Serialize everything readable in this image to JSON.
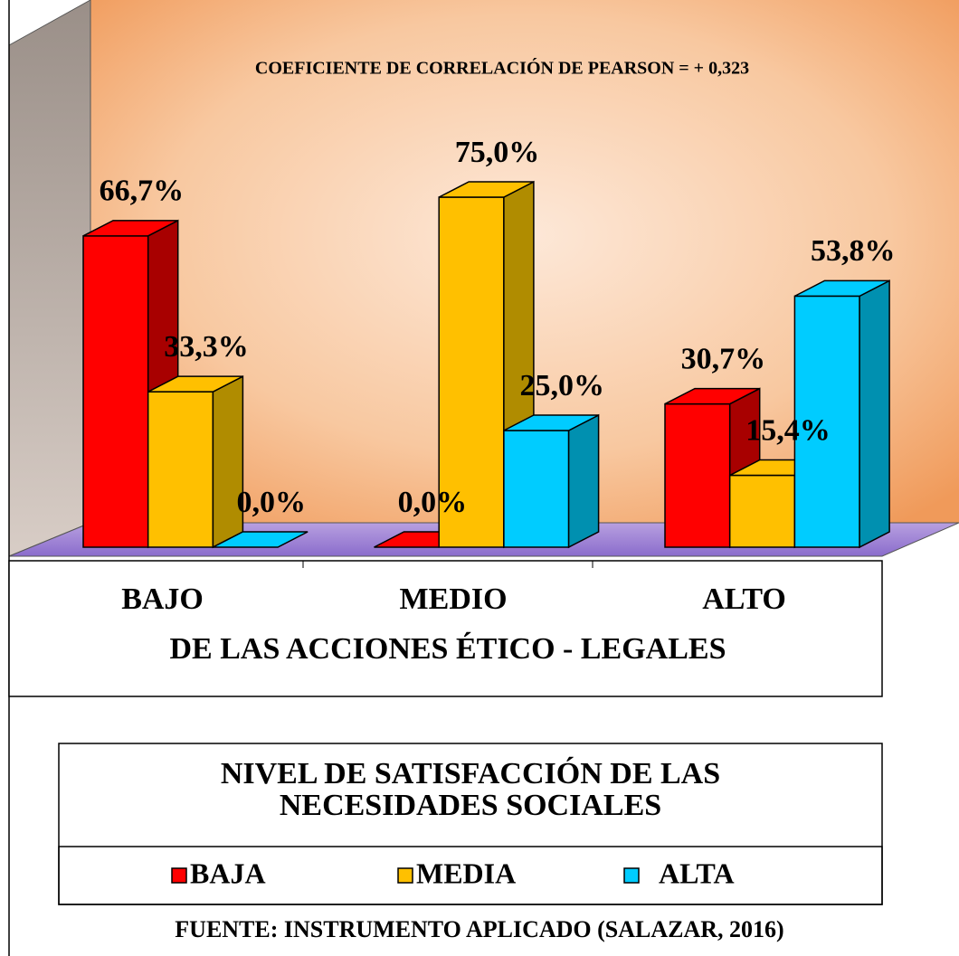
{
  "chart_data": {
    "type": "bar3d",
    "subtitle": "COEFICIENTE DE CORRELACIÓN DE PEARSON = + 0,323",
    "categories": [
      "BAJO",
      "MEDIO",
      "ALTO"
    ],
    "x_label": "DE LAS ACCIONES ÉTICO - LEGALES",
    "legend_title": [
      "NIVEL DE SATISFACCIÓN DE LAS",
      "NECESIDADES SOCIALES"
    ],
    "series": [
      {
        "name": "BAJA",
        "color": "#ff0000",
        "side_color": "#a80000",
        "values": [
          66.7,
          0,
          30.7
        ],
        "value_labels": [
          "66,7%",
          "0,0%",
          "30,7%"
        ]
      },
      {
        "name": "MEDIA",
        "color": "#ffc000",
        "side_color": "#b08c00",
        "values": [
          33.3,
          75,
          15.4
        ],
        "value_labels": [
          "33,3%",
          "75,0%",
          "15,4%"
        ]
      },
      {
        "name": "ALTA",
        "color": "#00ccff",
        "side_color": "#0090b0",
        "values": [
          0,
          25,
          53.8
        ],
        "value_labels": [
          "0,0%",
          "25,0%",
          "53,8%"
        ]
      }
    ],
    "source": "FUENTE: INSTRUMENTO APLICADO (SALAZAR, 2016)"
  }
}
